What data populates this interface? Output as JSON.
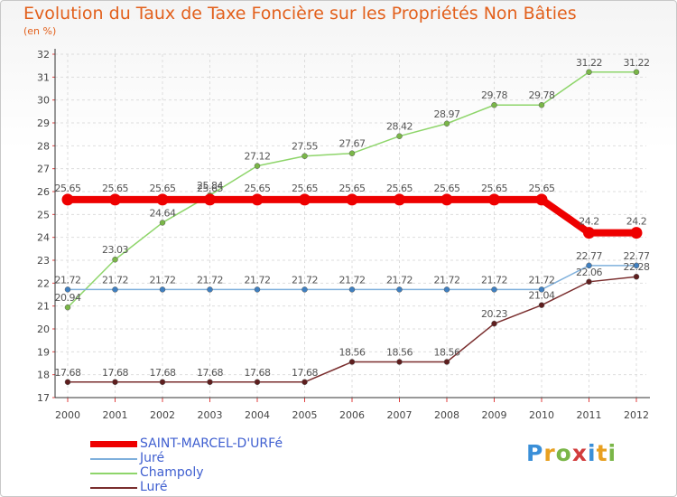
{
  "title": "Evolution du Taux de Taxe Foncière sur les Propriétés Non Bâties",
  "subtitle": "(en %)",
  "logo": {
    "letters": [
      "P",
      "r",
      "o",
      "x",
      "i",
      "t",
      "i"
    ],
    "colors": [
      "#3a8fd8",
      "#e8a020",
      "#7ab648",
      "#d23c3c",
      "#3a8fd8",
      "#e8a020",
      "#7ab648"
    ]
  },
  "chart_data": {
    "type": "line",
    "title": "Evolution du Taux de Taxe Foncière sur les Propriétés Non Bâties",
    "ylabel": "(en %)",
    "xlabel": "",
    "ylim": [
      17,
      32
    ],
    "yticks": [
      "17",
      "18",
      "19",
      "20",
      "21",
      "22",
      "23",
      "24",
      "25",
      "26",
      "27",
      "28",
      "29",
      "30",
      "31",
      "32"
    ],
    "categories": [
      "2000",
      "2001",
      "2002",
      "2003",
      "2004",
      "2005",
      "2006",
      "2007",
      "2008",
      "2009",
      "2010",
      "2011",
      "2012"
    ],
    "series": [
      {
        "name": "Champoly",
        "color": "#8ed56a",
        "marker": "#7ab648",
        "values": [
          20.94,
          23.03,
          24.64,
          25.84,
          27.12,
          27.55,
          27.67,
          28.42,
          28.97,
          29.78,
          29.78,
          31.22,
          31.22
        ],
        "labels": [
          "20.94",
          "23.03",
          "24.64",
          "25.84",
          "27.12",
          "27.55",
          "27.67",
          "28.42",
          "28.97",
          "29.78",
          "29.78",
          "31.22",
          "31.22"
        ]
      },
      {
        "name": "Juré",
        "color": "#7fb0dc",
        "marker": "#3f7fc0",
        "values": [
          21.72,
          21.72,
          21.72,
          21.72,
          21.72,
          21.72,
          21.72,
          21.72,
          21.72,
          21.72,
          21.72,
          22.77,
          22.77
        ],
        "labels": [
          "21.72",
          "21.72",
          "21.72",
          "21.72",
          "21.72",
          "21.72",
          "21.72",
          "21.72",
          "21.72",
          "21.72",
          "21.72",
          "22.77",
          "22.77"
        ]
      },
      {
        "name": "Luré",
        "color": "#7a2e2e",
        "marker": "#5e1e1e",
        "values": [
          17.68,
          17.68,
          17.68,
          17.68,
          17.68,
          17.68,
          18.56,
          18.56,
          18.56,
          20.23,
          21.04,
          22.06,
          22.28
        ],
        "labels": [
          "17.68",
          "17.68",
          "17.68",
          "17.68",
          "17.68",
          "17.68",
          "18.56",
          "18.56",
          "18.56",
          "20.23",
          "21.04",
          "22.06",
          "22.28"
        ]
      },
      {
        "name": "SAINT-MARCEL-D'URFé",
        "color": "#ee0000",
        "marker": "#ee0000",
        "values": [
          25.65,
          25.65,
          25.65,
          25.65,
          25.65,
          25.65,
          25.65,
          25.65,
          25.65,
          25.65,
          25.65,
          24.2,
          24.2
        ],
        "labels": [
          "25.65",
          "25.65",
          "25.65",
          "25.65",
          "25.65",
          "25.65",
          "25.65",
          "25.65",
          "25.65",
          "25.65",
          "25.65",
          "24.2",
          "24.2"
        ]
      }
    ],
    "legend": [
      {
        "name": "SAINT-MARCEL-D'URFé",
        "color": "#ee0000"
      },
      {
        "name": "Juré",
        "color": "#7fb0dc"
      },
      {
        "name": "Champoly",
        "color": "#8ed56a"
      },
      {
        "name": "Luré",
        "color": "#7a2e2e"
      }
    ]
  }
}
